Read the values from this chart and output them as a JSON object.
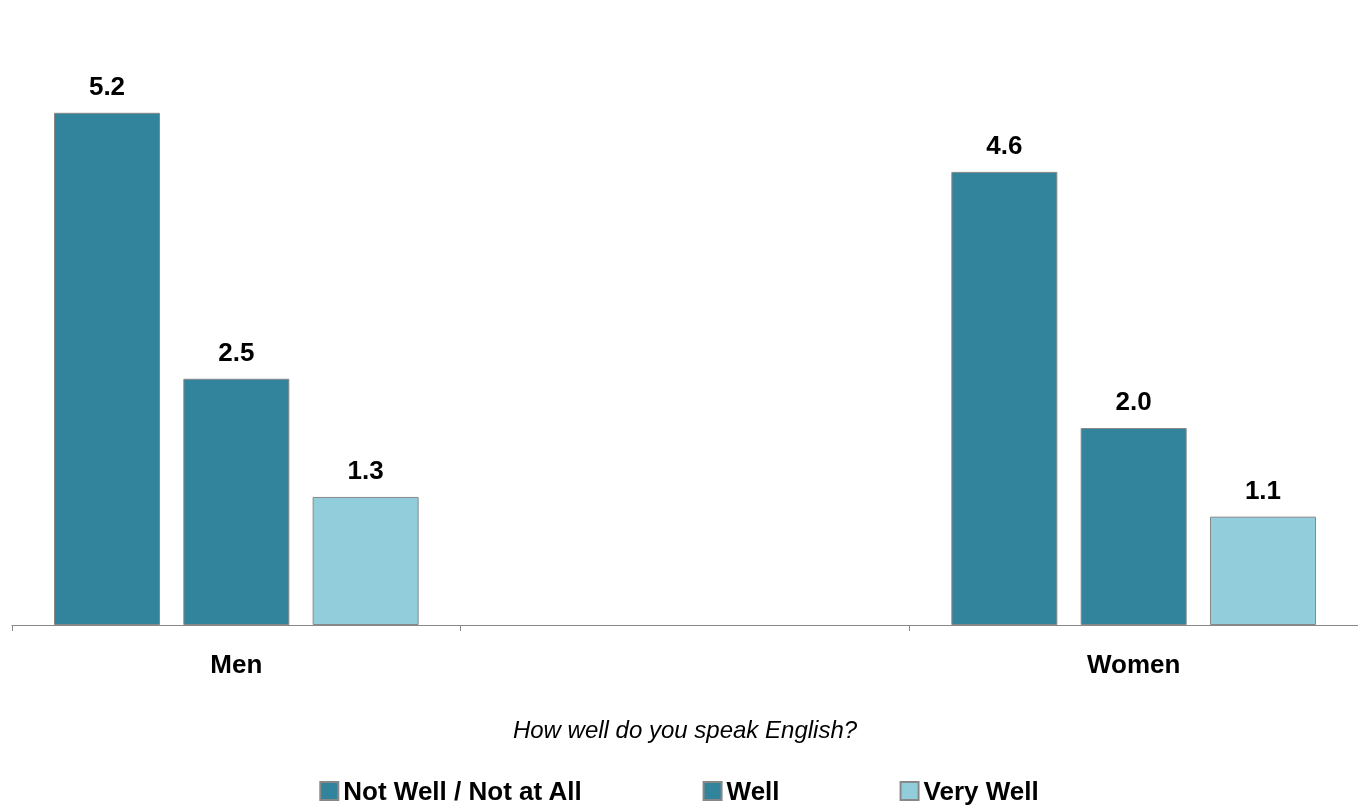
{
  "chart_data": {
    "type": "bar",
    "xlabel": "How well do you speak English?",
    "categories": [
      "Men",
      null,
      "Women"
    ],
    "series": [
      {
        "name": "Not Well / Not at All",
        "color": "#31849b",
        "values": [
          5.2,
          null,
          4.6
        ],
        "value_labels": [
          "5.2",
          null,
          "4.6"
        ]
      },
      {
        "name": "Well",
        "color": "#31849b",
        "values": [
          2.5,
          null,
          2.0
        ],
        "value_labels": [
          "2.5",
          null,
          "2.0"
        ]
      },
      {
        "name": "Very Well",
        "color": "#92cddc",
        "values": [
          1.3,
          null,
          1.1
        ],
        "value_labels": [
          "1.3",
          null,
          "1.1"
        ]
      }
    ],
    "legend": "bottom"
  }
}
